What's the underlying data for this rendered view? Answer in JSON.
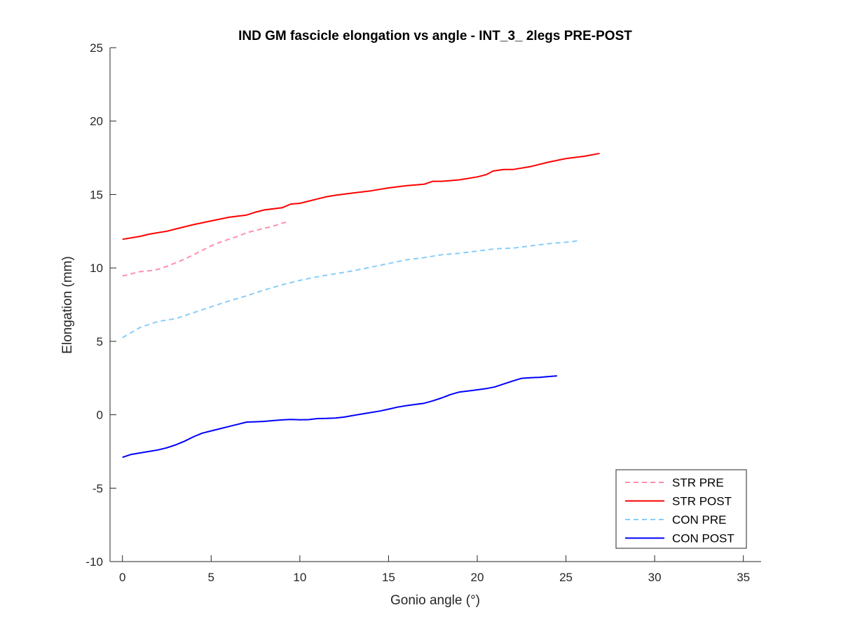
{
  "chart_data": {
    "type": "line",
    "title": "IND GM fascicle elongation vs angle - INT_3_ 2legs PRE-POST",
    "xlabel": "Gonio angle (°)",
    "ylabel": "Elongation (mm)",
    "xlim": [
      -0.7,
      36
    ],
    "ylim": [
      -10,
      25
    ],
    "xticks": [
      0,
      5,
      10,
      15,
      20,
      25,
      30,
      35
    ],
    "yticks": [
      -10,
      -5,
      0,
      5,
      10,
      15,
      20,
      25
    ],
    "grid": false,
    "legend_position": "bottom-right",
    "series": [
      {
        "name": "STR PRE",
        "color": "#ff8fab",
        "dash": "dashed",
        "x": [
          0,
          0.5,
          1,
          1.5,
          2,
          2.5,
          3,
          3.5,
          4,
          4.5,
          5,
          5.5,
          6,
          6.5,
          7,
          7.5,
          8,
          8.5,
          9,
          9.4
        ],
        "y": [
          9.45,
          9.6,
          9.75,
          9.8,
          9.9,
          10.1,
          10.35,
          10.6,
          10.9,
          11.2,
          11.5,
          11.75,
          11.95,
          12.15,
          12.4,
          12.55,
          12.7,
          12.85,
          13.05,
          13.15
        ]
      },
      {
        "name": "STR POST",
        "color": "#ff0000",
        "dash": "solid",
        "x": [
          0,
          1,
          1.5,
          2,
          2.5,
          3,
          3.5,
          4,
          5,
          6,
          7,
          7.5,
          8,
          9,
          9.5,
          10,
          10.5,
          11,
          11.5,
          12,
          13,
          14,
          15,
          16,
          17,
          17.5,
          18,
          19,
          20,
          20.5,
          20.9,
          21.5,
          22,
          23,
          24,
          25,
          26,
          26.9
        ],
        "y": [
          11.95,
          12.15,
          12.3,
          12.4,
          12.5,
          12.65,
          12.8,
          12.95,
          13.2,
          13.45,
          13.6,
          13.8,
          13.95,
          14.1,
          14.35,
          14.4,
          14.55,
          14.7,
          14.85,
          14.95,
          15.1,
          15.25,
          15.45,
          15.6,
          15.7,
          15.9,
          15.9,
          16.0,
          16.2,
          16.35,
          16.6,
          16.7,
          16.7,
          16.9,
          17.2,
          17.45,
          17.6,
          17.8
        ]
      },
      {
        "name": "CON PRE",
        "color": "#87cefa",
        "dash": "dashed",
        "x": [
          0,
          0.5,
          1,
          2,
          3,
          4,
          5,
          6,
          7,
          8,
          9,
          10,
          11,
          12,
          13,
          14,
          15,
          16,
          17,
          18,
          19,
          20,
          21,
          22,
          23,
          24,
          25,
          25.7
        ],
        "y": [
          5.25,
          5.6,
          5.95,
          6.35,
          6.55,
          6.95,
          7.35,
          7.75,
          8.1,
          8.5,
          8.85,
          9.15,
          9.4,
          9.6,
          9.8,
          10.05,
          10.3,
          10.55,
          10.7,
          10.9,
          11.0,
          11.15,
          11.3,
          11.35,
          11.5,
          11.65,
          11.75,
          11.85
        ]
      },
      {
        "name": "CON POST",
        "color": "#0000ff",
        "dash": "solid",
        "x": [
          0,
          0.5,
          1,
          1.5,
          2,
          2.5,
          3,
          3.5,
          4,
          4.5,
          5,
          5.5,
          6,
          6.5,
          7,
          7.5,
          8,
          8.5,
          9,
          9.5,
          10,
          10.5,
          11,
          11.5,
          12,
          12.5,
          13,
          13.5,
          14,
          14.5,
          15,
          15.5,
          16,
          16.5,
          17,
          17.5,
          18,
          18.5,
          19,
          19.5,
          20,
          20.5,
          21,
          21.5,
          22,
          22.5,
          23,
          23.5,
          24,
          24.5
        ],
        "y": [
          -2.9,
          -2.7,
          -2.6,
          -2.5,
          -2.4,
          -2.25,
          -2.05,
          -1.8,
          -1.5,
          -1.25,
          -1.1,
          -0.95,
          -0.8,
          -0.65,
          -0.5,
          -0.48,
          -0.45,
          -0.4,
          -0.35,
          -0.32,
          -0.34,
          -0.33,
          -0.26,
          -0.25,
          -0.22,
          -0.16,
          -0.05,
          0.05,
          0.15,
          0.25,
          0.38,
          0.52,
          0.62,
          0.7,
          0.78,
          0.95,
          1.15,
          1.38,
          1.55,
          1.62,
          1.7,
          1.78,
          1.9,
          2.1,
          2.3,
          2.48,
          2.52,
          2.55,
          2.6,
          2.65
        ]
      }
    ]
  }
}
